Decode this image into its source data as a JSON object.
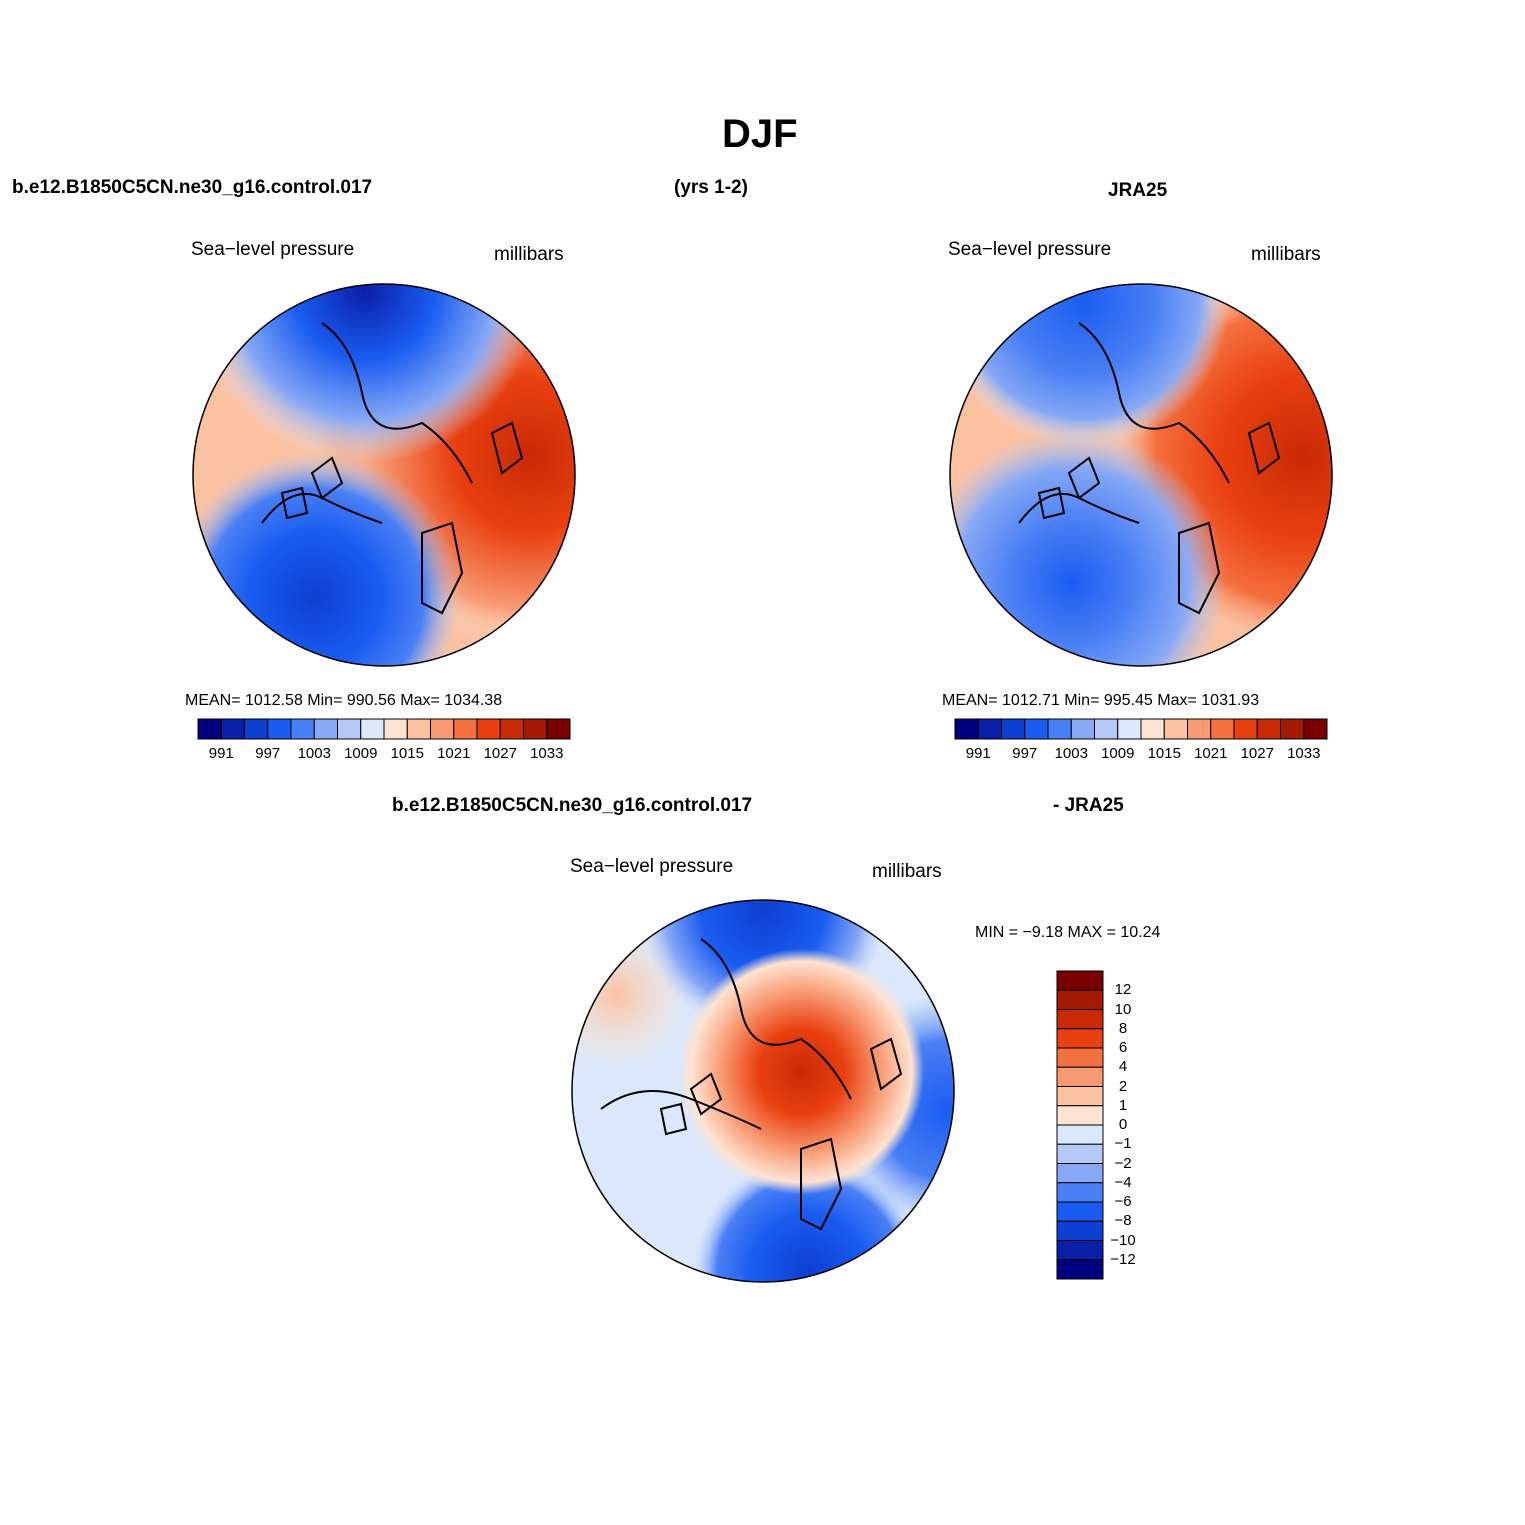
{
  "title": "DJF",
  "header": {
    "case_name": "b.e12.B1850C5CN.ne30_g16.control.017",
    "years": "(yrs 1-2)",
    "obs_name": "JRA25"
  },
  "diff_header": {
    "left": "b.e12.B1850C5CN.ne30_g16.control.017",
    "right": "- JRA25"
  },
  "panels": {
    "model": {
      "field_label": "Sea−level pressure",
      "unit_label": "millibars",
      "stats": "MEAN=  1012.58    Min=  990.56    Max=  1034.38"
    },
    "obs": {
      "field_label": "Sea−level pressure",
      "unit_label": "millibars",
      "stats": "MEAN=  1012.71    Min=  995.45    Max=  1031.93"
    },
    "diff": {
      "field_label": "Sea−level pressure",
      "unit_label": "millibars",
      "stats": "MIN =   −9.18  MAX =   10.24"
    }
  },
  "colorbars": {
    "abs": {
      "colors": [
        "#00007f",
        "#0a1fa8",
        "#0d3fd0",
        "#1a5cf0",
        "#4a80f5",
        "#86a8f5",
        "#b4c9f7",
        "#dbe8fb",
        "#fde4d2",
        "#fbc2a2",
        "#f89b74",
        "#f5703f",
        "#e94010",
        "#c82a06",
        "#a31903",
        "#7a0000"
      ],
      "labels": [
        "991",
        "997",
        "1003",
        "1009",
        "1015",
        "1021",
        "1027",
        "1033"
      ]
    },
    "diff": {
      "colors": [
        "#7a0000",
        "#a31903",
        "#c82a06",
        "#e94010",
        "#f5703f",
        "#f89b74",
        "#fbc2a2",
        "#fde4d2",
        "#dbe8fb",
        "#b4c9f7",
        "#86a8f5",
        "#4a80f5",
        "#1a5cf0",
        "#0d3fd0",
        "#0a1fa8",
        "#00007f"
      ],
      "labels": [
        "12",
        "10",
        "8",
        "6",
        "4",
        "2",
        "1",
        "0",
        "−1",
        "−2",
        "−4",
        "−6",
        "−8",
        "−10",
        "−12"
      ]
    }
  }
}
